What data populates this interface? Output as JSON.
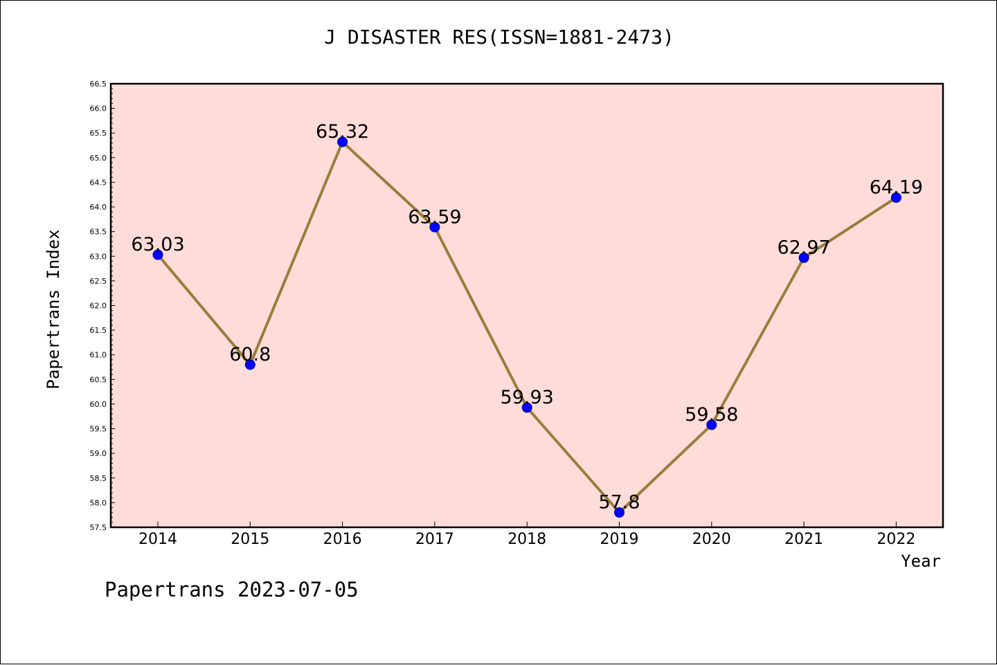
{
  "chart_data": {
    "type": "line",
    "title": "J DISASTER RES(ISSN=1881-2473)",
    "xlabel": "Year",
    "ylabel": "Papertrans Index",
    "categories": [
      "2014",
      "2015",
      "2016",
      "2017",
      "2018",
      "2019",
      "2020",
      "2021",
      "2022"
    ],
    "values": [
      63.03,
      60.8,
      65.32,
      63.59,
      59.93,
      57.8,
      59.58,
      62.97,
      64.19
    ],
    "data_labels": [
      "63.03",
      "60.8",
      "65.32",
      "63.59",
      "59.93",
      "57.8",
      "59.58",
      "62.97",
      "64.19"
    ],
    "ylim": [
      57.5,
      66.5
    ],
    "yticks": [
      "57.5",
      "58.0",
      "58.5",
      "59.0",
      "59.5",
      "60.0",
      "60.5",
      "61.0",
      "61.5",
      "62.0",
      "62.5",
      "63.0",
      "63.5",
      "64.0",
      "64.5",
      "65.0",
      "65.5",
      "66.0",
      "66.5"
    ],
    "grid": false,
    "colors": {
      "plot_background": "#fddcd9",
      "line": "#9a7d3b",
      "marker": "#0000ff",
      "axes": "#000000"
    }
  },
  "footer": "Papertrans 2023-07-05"
}
